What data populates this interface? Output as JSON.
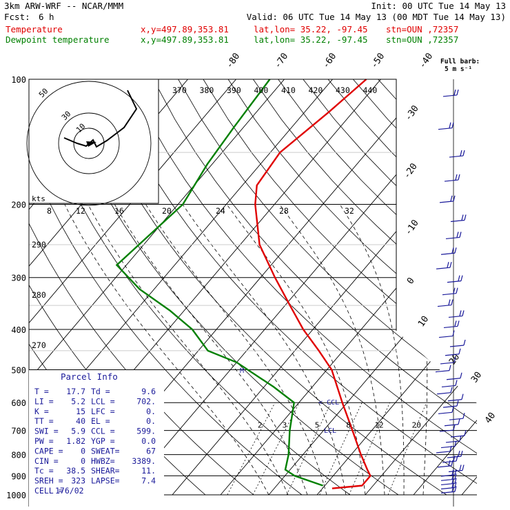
{
  "header": {
    "model": "3km ARW-WRF -- NCAR/MMM",
    "init": "Init: 00 UTC Tue 14 May 13",
    "fcst_label": "Fcst:",
    "fcst_value": "6 h",
    "valid": "Valid: 06 UTC Tue 14 May 13 (00 MDT Tue 14 May 13)",
    "temp_line": {
      "name": "Temperature",
      "xy": "x,y=497.89,353.81",
      "latlon": "lat,lon= 35.22, -97.45",
      "stn": "stn=OUN ,72357"
    },
    "dew_line": {
      "name": "Dewpoint temperature",
      "xy": "x,y=497.89,353.81",
      "latlon": "lat,lon= 35.22, -97.45",
      "stn": "stn=OUN ,72357"
    }
  },
  "colors": {
    "temperature": "#e00000",
    "dewpoint": "#008000",
    "barbs": "#1a1a9a",
    "parcel": "#1a1a9a"
  },
  "wind_key": {
    "line1": "Full barb:",
    "line2": "5 m s⁻¹"
  },
  "chart_data": {
    "type": "line",
    "subtype": "skew-T log-p diagram",
    "pressure_ticks": [
      "100",
      "200",
      "300",
      "400",
      "500",
      "600",
      "700",
      "800",
      "900",
      "1000"
    ],
    "temperature_ticks_top": [
      "-80",
      "-70",
      "-60",
      "-50",
      "-40"
    ],
    "temperature_ticks_right": [
      "-30",
      "-20",
      "-10",
      "0",
      "10",
      "20",
      "30",
      "40"
    ],
    "theta_labels": [
      "370",
      "380",
      "390",
      "400",
      "410",
      "420",
      "430",
      "440"
    ],
    "theta_labels_left": [
      "290",
      "280",
      "270"
    ],
    "mixing_ratio_labels": [
      "2",
      "3",
      "5",
      "8",
      "12",
      "20"
    ],
    "series": [
      {
        "name": "Temperature",
        "points": [
          [
            100,
            -53
          ],
          [
            120,
            -55
          ],
          [
            150,
            -58
          ],
          [
            180,
            -57
          ],
          [
            200,
            -54
          ],
          [
            250,
            -46
          ],
          [
            300,
            -37
          ],
          [
            350,
            -29
          ],
          [
            400,
            -22
          ],
          [
            450,
            -15
          ],
          [
            500,
            -9
          ],
          [
            600,
            -1
          ],
          [
            700,
            6
          ],
          [
            800,
            12
          ],
          [
            870,
            16
          ],
          [
            900,
            17.7
          ],
          [
            950,
            17.7
          ],
          [
            965,
            12
          ]
        ]
      },
      {
        "name": "Dewpoint temperature",
        "points": [
          [
            100,
            -73
          ],
          [
            130,
            -72
          ],
          [
            160,
            -71
          ],
          [
            200,
            -69
          ],
          [
            250,
            -71
          ],
          [
            280,
            -72
          ],
          [
            320,
            -63
          ],
          [
            360,
            -53
          ],
          [
            400,
            -45
          ],
          [
            450,
            -38
          ],
          [
            480,
            -30
          ],
          [
            550,
            -18
          ],
          [
            600,
            -11
          ],
          [
            700,
            -7
          ],
          [
            800,
            -3
          ],
          [
            870,
            -1
          ],
          [
            900,
            2
          ],
          [
            950,
            9.6
          ]
        ]
      }
    ],
    "hodograph": {
      "units_label": "kts",
      "ring_labels": [
        "10",
        "30",
        "50"
      ],
      "speed_ticks": [
        "8",
        "12",
        "16",
        "20",
        "24",
        "28",
        "32"
      ]
    },
    "annotations": {
      "lcl": "LCL",
      "ccl": "CCL",
      "mark": "M"
    },
    "parcel_info": {
      "title": "Parcel Info",
      "rows": [
        [
          "T  =",
          "17.7",
          "Td =",
          "9.6"
        ],
        [
          "LI =",
          "5.2",
          "LCL =",
          "702."
        ],
        [
          "K  =",
          "15",
          "LFC =",
          "0."
        ],
        [
          "TT =",
          "40",
          "EL  =",
          "0."
        ],
        [
          "SWI =",
          "5.9",
          "CCL =",
          "599."
        ],
        [
          "PW =",
          "1.82",
          "YGP =",
          "0.0"
        ],
        [
          "CAPE =",
          "0",
          "SWEAT=",
          "67"
        ],
        [
          "CIN =",
          "0",
          "HWBZ=",
          "3389."
        ],
        [
          "Tc =",
          "38.5",
          "SHEAR=",
          "11."
        ],
        [
          "SREH =",
          "323",
          "LAPSE=",
          "7.4"
        ],
        [
          "CELL =",
          "176/02",
          "",
          ""
        ]
      ]
    }
  }
}
